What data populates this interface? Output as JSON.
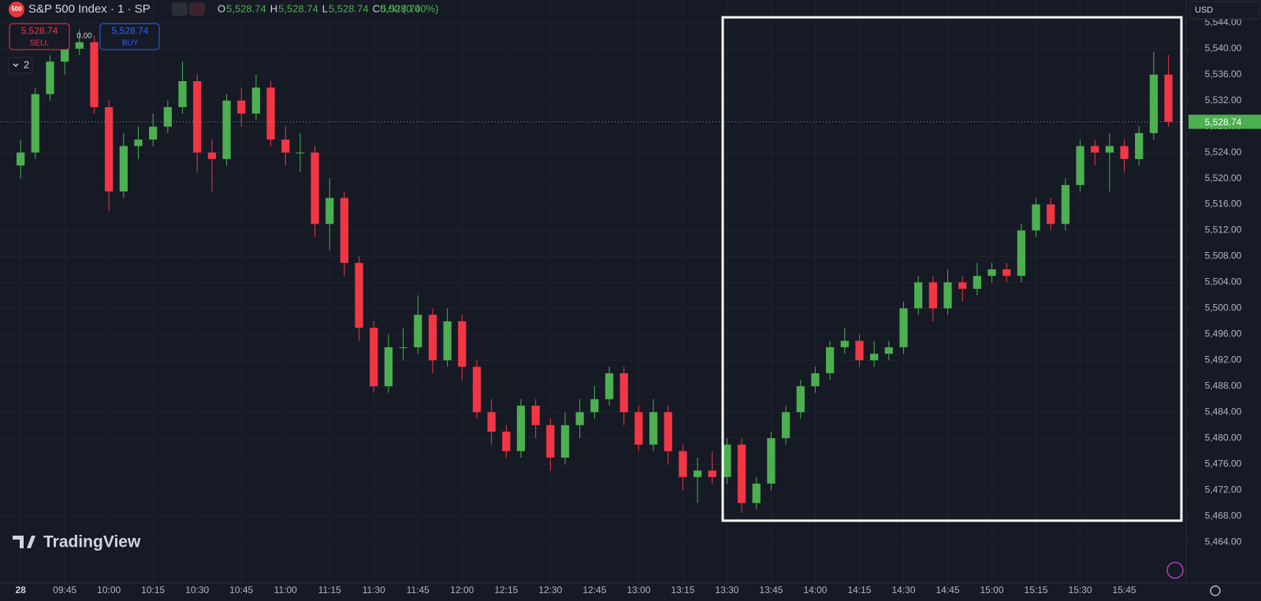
{
  "header": {
    "logo": "500",
    "symbol": "S&P 500 Index · 1 · SP",
    "ohlc": [
      {
        "key": "O",
        "value": "5,528.74"
      },
      {
        "key": "H",
        "value": "5,528.74"
      },
      {
        "key": "L",
        "value": "5,528.74"
      },
      {
        "key": "C",
        "value": "5,528.74"
      }
    ],
    "change": "0.00 (0.00%)"
  },
  "trade": {
    "sell_price": "5,528.74",
    "sell": "SELL",
    "spread": "0.00",
    "buy_price": "5,528.74",
    "buy": "BUY"
  },
  "indicators_count": "2",
  "currency": "USD",
  "brand": "TradingView",
  "chart_data": {
    "type": "candlestick",
    "x": [
      0,
      5,
      10,
      15,
      20,
      25,
      30,
      35,
      40,
      45,
      50,
      55,
      60,
      65,
      70,
      75,
      80,
      85,
      90,
      95,
      100,
      105,
      110,
      115,
      120,
      125,
      130,
      135,
      140,
      145,
      150,
      155,
      160,
      165,
      170,
      175,
      180,
      185,
      190,
      195,
      200,
      205,
      210,
      215,
      220,
      225,
      230,
      235,
      240,
      245,
      250,
      255,
      260,
      265,
      270,
      275,
      280,
      285,
      290,
      295,
      300,
      305,
      310,
      315,
      320,
      325,
      330,
      335,
      340,
      345,
      350,
      355,
      360,
      365,
      370,
      375,
      380,
      385,
      390
    ],
    "open": [
      5522,
      5524,
      5533,
      5538,
      5540,
      5541,
      5531,
      5518,
      5525,
      5526,
      5528,
      5531,
      5535,
      5524,
      5523,
      5532,
      5530,
      5534,
      5526,
      5524,
      5524,
      5513,
      5517,
      5507,
      5497,
      5488,
      5494,
      5494,
      5499,
      5492,
      5498,
      5491,
      5484,
      5481,
      5478,
      5485,
      5482,
      5477,
      5482,
      5484,
      5486,
      5490,
      5484,
      5479,
      5484,
      5478,
      5474,
      5475,
      5474,
      5479,
      5470,
      5473,
      5480,
      5484,
      5488,
      5490,
      5494,
      5495,
      5492,
      5493,
      5494,
      5500,
      5504,
      5500,
      5504,
      5503,
      5505,
      5506,
      5505,
      5512,
      5516,
      5513,
      5519,
      5525,
      5524,
      5525,
      5523,
      5527,
      5536
    ],
    "high": [
      5526,
      5534,
      5539,
      5542,
      5543,
      5542,
      5532,
      5527,
      5528,
      5530,
      5532,
      5538,
      5536,
      5526,
      5533,
      5534,
      5536,
      5535,
      5528,
      5527,
      5525,
      5520,
      5518,
      5508,
      5498,
      5496,
      5497,
      5502,
      5500,
      5500,
      5499,
      5492,
      5486,
      5482,
      5486,
      5486,
      5483,
      5484,
      5486,
      5488,
      5491,
      5491,
      5485,
      5486,
      5485,
      5479,
      5477,
      5478,
      5480,
      5480,
      5474,
      5481,
      5485,
      5489,
      5491,
      5495,
      5497,
      5496,
      5495,
      5495,
      5501,
      5505,
      5505,
      5506,
      5505,
      5507,
      5507,
      5507,
      5513,
      5517,
      5517,
      5520,
      5526,
      5526,
      5527,
      5526,
      5528,
      5539.5,
      5539
    ],
    "low": [
      5520,
      5523,
      5532,
      5536,
      5539,
      5530,
      5515,
      5517,
      5523,
      5525,
      5527,
      5530,
      5521,
      5518,
      5522,
      5528,
      5529,
      5525,
      5522,
      5521,
      5511,
      5509,
      5505,
      5495,
      5487,
      5487,
      5492,
      5493,
      5490,
      5491,
      5489,
      5483,
      5479,
      5477,
      5477,
      5480,
      5475,
      5476,
      5480,
      5483,
      5485,
      5482,
      5478,
      5478,
      5476,
      5472,
      5470,
      5473,
      5473,
      5468.5,
      5469,
      5472,
      5479,
      5483,
      5487,
      5489,
      5493,
      5491,
      5491,
      5492,
      5493,
      5499,
      5498,
      5499,
      5501,
      5502,
      5504,
      5504,
      5504,
      5511,
      5512,
      5512,
      5518,
      5522,
      5518,
      5521,
      5522,
      5526,
      5528
    ],
    "close": [
      5524,
      5533,
      5538,
      5540,
      5541,
      5531,
      5518,
      5525,
      5526,
      5528,
      5531,
      5535,
      5524,
      5523,
      5532,
      5530,
      5534,
      5526,
      5524,
      5524,
      5513,
      5517,
      5507,
      5497,
      5488,
      5494,
      5494,
      5499,
      5492,
      5498,
      5491,
      5484,
      5481,
      5478,
      5485,
      5482,
      5477,
      5482,
      5484,
      5486,
      5490,
      5484,
      5479,
      5484,
      5478,
      5474,
      5475,
      5474,
      5479,
      5470,
      5473,
      5480,
      5484,
      5488,
      5490,
      5494,
      5495,
      5492,
      5493,
      5494,
      5500,
      5504,
      5500,
      5504,
      5503,
      5505,
      5506,
      5505,
      5512,
      5516,
      5513,
      5519,
      5525,
      5524,
      5525,
      5523,
      5527,
      5536,
      5528.74
    ],
    "last_price_label": "5,528.74",
    "up_color": "#4caf50",
    "down_color": "#f23645",
    "xlim": [
      -7,
      396
    ],
    "xticks": [
      {
        "value": 0,
        "label": "28"
      },
      {
        "value": 15,
        "label": "09:45"
      },
      {
        "value": 30,
        "label": "10:00"
      },
      {
        "value": 45,
        "label": "10:15"
      },
      {
        "value": 60,
        "label": "10:30"
      },
      {
        "value": 75,
        "label": "10:45"
      },
      {
        "value": 90,
        "label": "11:00"
      },
      {
        "value": 105,
        "label": "11:15"
      },
      {
        "value": 120,
        "label": "11:30"
      },
      {
        "value": 135,
        "label": "11:45"
      },
      {
        "value": 150,
        "label": "12:00"
      },
      {
        "value": 165,
        "label": "12:15"
      },
      {
        "value": 180,
        "label": "12:30"
      },
      {
        "value": 195,
        "label": "12:45"
      },
      {
        "value": 210,
        "label": "13:00"
      },
      {
        "value": 225,
        "label": "13:15"
      },
      {
        "value": 240,
        "label": "13:30"
      },
      {
        "value": 255,
        "label": "13:45"
      },
      {
        "value": 270,
        "label": "14:00"
      },
      {
        "value": 285,
        "label": "14:15"
      },
      {
        "value": 300,
        "label": "14:30"
      },
      {
        "value": 315,
        "label": "14:45"
      },
      {
        "value": 330,
        "label": "15:00"
      },
      {
        "value": 345,
        "label": "15:15"
      },
      {
        "value": 360,
        "label": "15:30"
      },
      {
        "value": 375,
        "label": "15:45"
      }
    ],
    "ylim": [
      5457.7,
      5547.5
    ],
    "yticks": [
      {
        "value": 5464,
        "label": "5,464.00"
      },
      {
        "value": 5468,
        "label": "5,468.00"
      },
      {
        "value": 5472,
        "label": "5,472.00"
      },
      {
        "value": 5476,
        "label": "5,476.00"
      },
      {
        "value": 5480,
        "label": "5,480.00"
      },
      {
        "value": 5484,
        "label": "5,484.00"
      },
      {
        "value": 5488,
        "label": "5,488.00"
      },
      {
        "value": 5492,
        "label": "5,492.00"
      },
      {
        "value": 5496,
        "label": "5,496.00"
      },
      {
        "value": 5500,
        "label": "5,500.00"
      },
      {
        "value": 5504,
        "label": "5,504.00"
      },
      {
        "value": 5508,
        "label": "5,508.00"
      },
      {
        "value": 5512,
        "label": "5,512.00"
      },
      {
        "value": 5516,
        "label": "5,516.00"
      },
      {
        "value": 5520,
        "label": "5,520.00"
      },
      {
        "value": 5524,
        "label": "5,524.00"
      },
      {
        "value": 5528,
        "label": "5,528.00"
      },
      {
        "value": 5532,
        "label": "5,532.00"
      },
      {
        "value": 5536,
        "label": "5,536.00"
      },
      {
        "value": 5540,
        "label": "5,540.00"
      },
      {
        "value": 5544,
        "label": "5,544.00"
      }
    ],
    "grid": true
  }
}
